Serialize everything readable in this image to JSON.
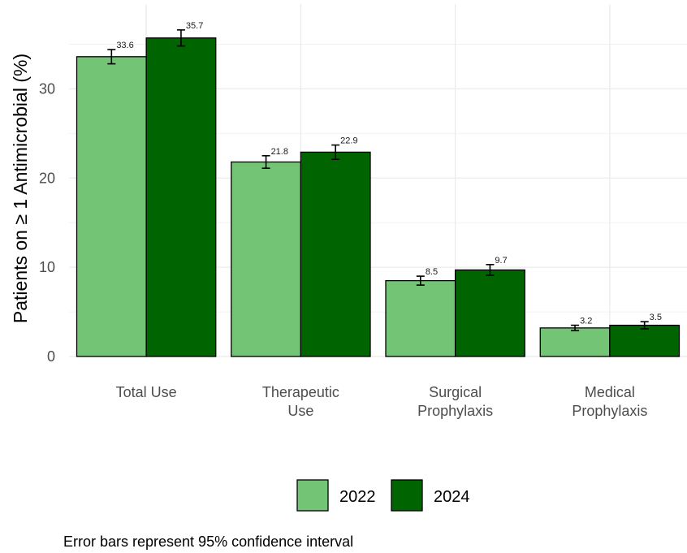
{
  "chart_data": {
    "type": "bar",
    "categories": [
      [
        "Total Use"
      ],
      [
        "Therapeutic",
        "Use"
      ],
      [
        "Surgical",
        "Prophylaxis"
      ],
      [
        "Medical",
        "Prophylaxis"
      ]
    ],
    "series": [
      {
        "name": "2022",
        "color": "#74c476",
        "values": [
          33.6,
          21.8,
          8.5,
          3.2
        ],
        "ci_low": [
          32.8,
          21.1,
          8.0,
          2.9
        ],
        "ci_high": [
          34.4,
          22.5,
          9.0,
          3.5
        ]
      },
      {
        "name": "2024",
        "color": "#006400",
        "values": [
          35.7,
          22.9,
          9.7,
          3.5
        ],
        "ci_low": [
          34.8,
          22.1,
          9.1,
          3.1
        ],
        "ci_high": [
          36.6,
          23.7,
          10.3,
          3.9
        ]
      }
    ],
    "data_labels": [
      [
        "33.6",
        "21.8",
        "8.5",
        "3.2"
      ],
      [
        "35.7",
        "22.9",
        "9.7",
        "3.5"
      ]
    ],
    "ylabel": "Patients on ≥ 1 Antimicrobial (%)",
    "xlabel": "",
    "ylim": [
      0,
      39.5
    ],
    "yticks": [
      0,
      10,
      20,
      30
    ],
    "grid": true,
    "legend_position": "bottom",
    "caption": "Error bars represent 95% confidence interval"
  }
}
